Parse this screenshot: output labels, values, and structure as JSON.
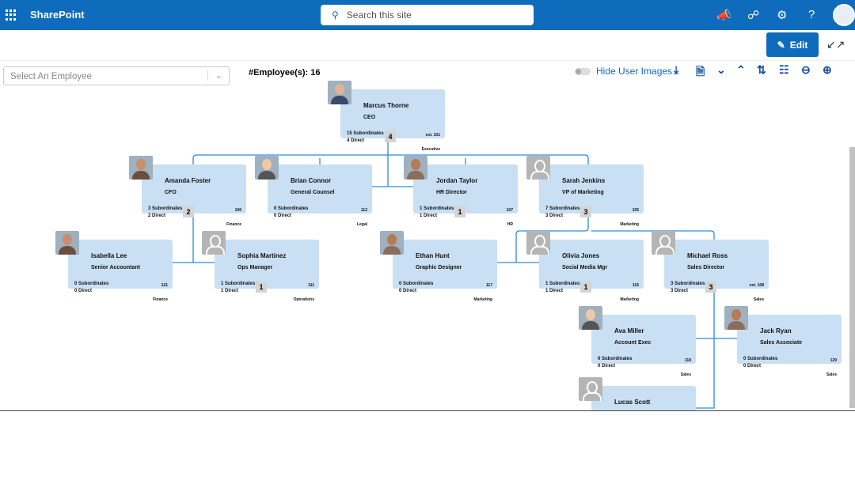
{
  "topbar": {
    "brand": "SharePoint",
    "search_placeholder": "Search this site",
    "icons": [
      "waffle-icon",
      "megaphone-icon",
      "share-icon",
      "gear-icon",
      "help-icon",
      "avatar"
    ]
  },
  "commandbar": {
    "edit_label": "Edit"
  },
  "toolbar": {
    "select_placeholder": "Select An Employee",
    "employee_count": "#Employee(s): 16",
    "hide_images_label": "Hide User Images",
    "hide_images_on": false,
    "tools": [
      "download-icon",
      "pdf-icon",
      "expand-all-icon",
      "collapse-all-icon",
      "swap-icon",
      "org-structure-icon",
      "zoom-out-icon",
      "zoom-in-icon"
    ]
  },
  "colors": {
    "brand": "#0f6cbd",
    "card": "#c9dff4",
    "link": "#1565c0",
    "connector": "#2a8ce0"
  },
  "employees": [
    {
      "id": "ceo",
      "name": "Marcus Thorne",
      "title": "CEO",
      "subs": "15 Subordinates",
      "direct": "4 Direct",
      "badge": "4",
      "ext": "ext. 101",
      "dept": "Executive",
      "photo": "real"
    },
    {
      "id": "amanda",
      "name": "Amanda Foster",
      "title": "CFO",
      "subs": "3 Subordinates",
      "direct": "2 Direct",
      "badge": "2",
      "ext": "106",
      "dept": "Finance",
      "photo": "real"
    },
    {
      "id": "brian",
      "name": "Brian Connor",
      "title": "General Counsel",
      "subs": "0 Subordinates",
      "direct": "0 Direct",
      "badge": "",
      "ext": "112",
      "dept": "Legal",
      "photo": "real"
    },
    {
      "id": "jordan",
      "name": "Jordan Taylor",
      "title": "HR Director",
      "subs": "1 Subordinates",
      "direct": "1 Direct",
      "badge": "1",
      "ext": "107",
      "dept": "HR",
      "photo": "real"
    },
    {
      "id": "sarah",
      "name": "Sarah Jenkins",
      "title": "VP of Marketing",
      "subs": "7 Subordinates",
      "direct": "3 Direct",
      "badge": "3",
      "ext": "105",
      "dept": "Marketing",
      "photo": "default"
    },
    {
      "id": "isabella",
      "name": "Isabella Lee",
      "title": "Senior Accountant",
      "subs": "0 Subordinates",
      "direct": "0 Direct",
      "badge": "",
      "ext": "121",
      "dept": "Finance",
      "photo": "real"
    },
    {
      "id": "sophia",
      "name": "Sophia Martinez",
      "title": "Ops Manager",
      "subs": "1 Subordinates",
      "direct": "1 Direct",
      "badge": "1",
      "ext": "111",
      "dept": "Operations",
      "photo": "default"
    },
    {
      "id": "ethan",
      "name": "Ethan Hunt",
      "title": "Graphic Designer",
      "subs": "0 Subordinates",
      "direct": "0 Direct",
      "badge": "",
      "ext": "117",
      "dept": "Marketing",
      "photo": "real"
    },
    {
      "id": "olivia",
      "name": "Olivia Jones",
      "title": "Social Media Mgr",
      "subs": "1 Subordinates",
      "direct": "1 Direct",
      "badge": "1",
      "ext": "116",
      "dept": "Marketing",
      "photo": "default"
    },
    {
      "id": "michael",
      "name": "Michael Ross",
      "title": "Sales Director",
      "subs": "3 Subordinates",
      "direct": "3 Direct",
      "badge": "3",
      "ext": "ext. 108",
      "dept": "Sales",
      "photo": "default"
    },
    {
      "id": "ava",
      "name": "Ava Miller",
      "title": "Account Exec",
      "subs": "0 Subordinates",
      "direct": "0 Direct",
      "badge": "",
      "ext": "118",
      "dept": "Sales",
      "photo": "real"
    },
    {
      "id": "jack",
      "name": "Jack Ryan",
      "title": "Sales Associate",
      "subs": "0 Subordinates",
      "direct": "0 Direct",
      "badge": "",
      "ext": "129",
      "dept": "Sales",
      "photo": "real"
    },
    {
      "id": "lucas",
      "name": "Lucas Scott",
      "title": "",
      "subs": "",
      "direct": "",
      "badge": "",
      "ext": "",
      "dept": "",
      "photo": "default"
    }
  ]
}
